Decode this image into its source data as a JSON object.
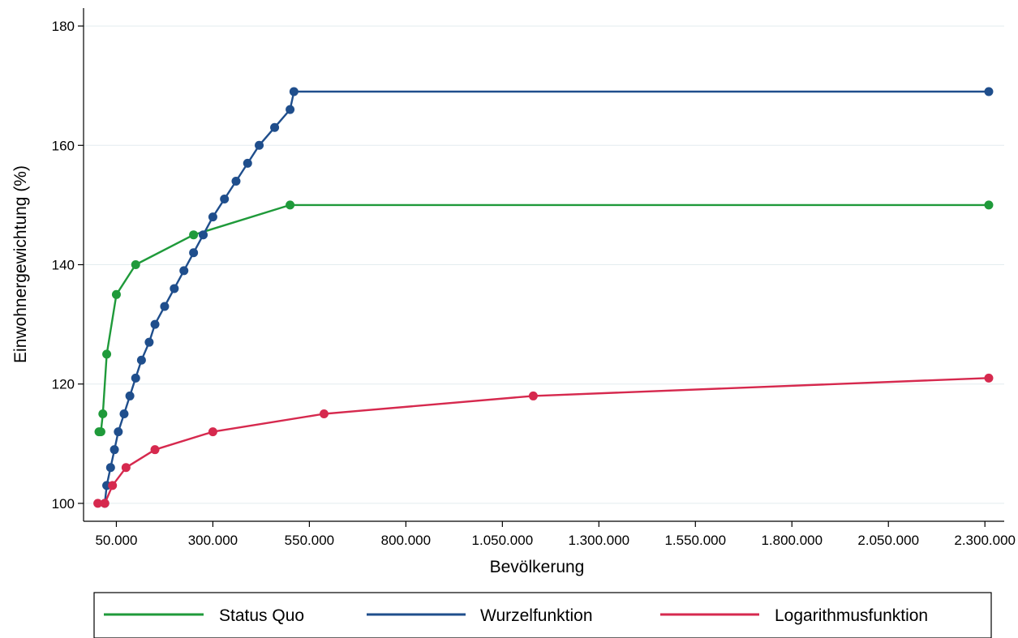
{
  "chart_data": {
    "type": "line",
    "xlabel": "Bevölkerung",
    "ylabel": "Einwohnergewichtung (%)",
    "xlim": [
      -35000,
      2350000
    ],
    "ylim": [
      97,
      183
    ],
    "x_ticks": [
      50000,
      300000,
      550000,
      800000,
      1050000,
      1300000,
      1550000,
      1800000,
      2050000,
      2300000
    ],
    "x_tick_labels": [
      "50.000",
      "300.000",
      "550.000",
      "800.000",
      "1.050.000",
      "1.300.000",
      "1.550.000",
      "1.800.000",
      "2.050.000",
      "2.300.000"
    ],
    "y_ticks": [
      100,
      120,
      140,
      160,
      180
    ],
    "y_tick_labels": [
      "100",
      "120",
      "140",
      "160",
      "180"
    ],
    "grid": true,
    "legend": "bottom",
    "series": [
      {
        "name": "Status Quo",
        "color": "#1f9a3a",
        "points": [
          [
            5000,
            112
          ],
          [
            10000,
            112
          ],
          [
            15000,
            115
          ],
          [
            25000,
            125
          ],
          [
            50000,
            135
          ],
          [
            100000,
            140
          ],
          [
            250000,
            145
          ],
          [
            500000,
            150
          ],
          [
            2310000,
            150
          ]
        ]
      },
      {
        "name": "Wurzelfunktion",
        "color": "#1f4e8c",
        "points": [
          [
            20000,
            100
          ],
          [
            25000,
            103
          ],
          [
            35000,
            106
          ],
          [
            45000,
            109
          ],
          [
            55000,
            112
          ],
          [
            70000,
            115
          ],
          [
            85000,
            118
          ],
          [
            100000,
            121
          ],
          [
            115000,
            124
          ],
          [
            135000,
            127
          ],
          [
            150000,
            130
          ],
          [
            175000,
            133
          ],
          [
            200000,
            136
          ],
          [
            225000,
            139
          ],
          [
            250000,
            142
          ],
          [
            275000,
            145
          ],
          [
            300000,
            148
          ],
          [
            330000,
            151
          ],
          [
            360000,
            154
          ],
          [
            390000,
            157
          ],
          [
            420000,
            160
          ],
          [
            460000,
            163
          ],
          [
            500000,
            166
          ],
          [
            510000,
            169
          ],
          [
            2310000,
            169
          ]
        ]
      },
      {
        "name": "Logarithmusfunktion",
        "color": "#d6294e",
        "points": [
          [
            2000,
            100
          ],
          [
            20000,
            100
          ],
          [
            40000,
            103
          ],
          [
            75000,
            106
          ],
          [
            150000,
            109
          ],
          [
            300000,
            112
          ],
          [
            588000,
            115
          ],
          [
            1130000,
            118
          ],
          [
            2310000,
            121
          ]
        ]
      }
    ]
  }
}
